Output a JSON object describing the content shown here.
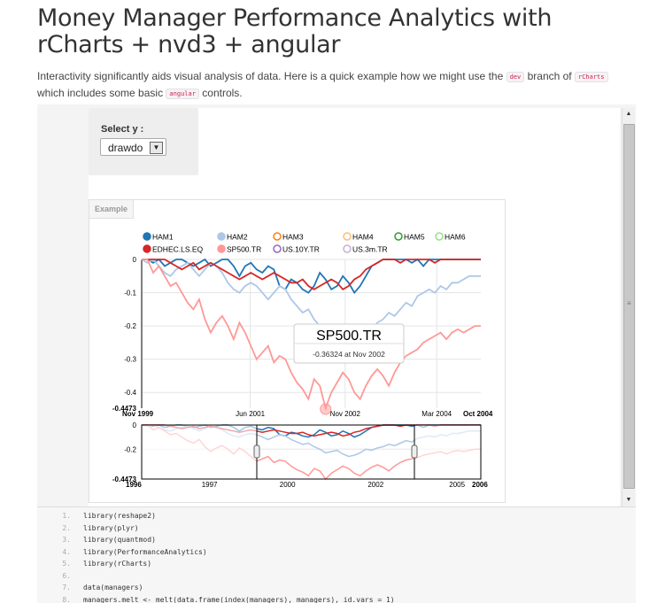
{
  "page": {
    "title": "Money Manager Performance Analytics with rCharts + nvd3 + angular",
    "intro_before": "Interactivity significantly aids visual analysis of data. Here is a quick example how we might use the",
    "code_dev": "dev",
    "intro_mid": "branch of",
    "code_rcharts": "rCharts",
    "intro_line2": "which includes some basic",
    "code_angular": "angular",
    "intro_end": "controls."
  },
  "control": {
    "label": "Select y :",
    "selected": "drawdo"
  },
  "chart_tab": "Example",
  "chart_data": {
    "type": "line",
    "title": "",
    "legend": [
      "HAM1",
      "HAM2",
      "HAM3",
      "HAM4",
      "HAM5",
      "HAM6",
      "EDHEC.LS.EQ",
      "SP500.TR",
      "US.10Y.TR",
      "US.3m.TR"
    ],
    "legend_colors": {
      "HAM1": "#1f77b4",
      "HAM2": "#aec7e8",
      "HAM3": "#ff7f0e",
      "HAM4": "#ffbb78",
      "HAM5": "#2ca02c",
      "HAM6": "#98df8a",
      "EDHEC.LS.EQ": "#d62728",
      "SP500.TR": "#ff9896",
      "US.10Y.TR": "#9467bd",
      "US.3m.TR": "#c5b0d5"
    },
    "legend_enabled": {
      "HAM1": true,
      "HAM2": true,
      "HAM3": false,
      "HAM4": false,
      "HAM5": false,
      "HAM6": false,
      "EDHEC.LS.EQ": true,
      "SP500.TR": true,
      "US.10Y.TR": false,
      "US.3m.TR": false
    },
    "main_y_ticks": [
      "0",
      "-0.1",
      "-0.2",
      "-0.3",
      "-0.4",
      "-0.4473"
    ],
    "main_x_ticks": [
      "Nov 1999",
      "Jun 2001",
      "Nov 2002",
      "Mar 2004",
      "Oct 2004"
    ],
    "ylim": [
      -0.4473,
      0
    ],
    "xlim": [
      "1999-11",
      "2004-10"
    ],
    "focus_y_ticks": [
      "0",
      "-0.2",
      "-0.4473"
    ],
    "focus_x_ticks": [
      "1996",
      "1997",
      "2000",
      "2002",
      "2005",
      "2006"
    ],
    "series": [
      {
        "name": "HAM1",
        "color": "#1f77b4",
        "values": [
          0,
          0,
          -0.01,
          0,
          -0.02,
          -0.01,
          0,
          0,
          -0.01,
          -0.02,
          -0.01,
          0,
          -0.02,
          -0.01,
          0,
          0,
          -0.02,
          -0.05,
          -0.02,
          -0.01,
          -0.03,
          -0.04,
          -0.02,
          -0.03,
          -0.08,
          -0.09,
          -0.06,
          -0.07,
          -0.09,
          -0.1,
          -0.08,
          -0.04,
          -0.06,
          -0.09,
          -0.08,
          -0.05,
          -0.07,
          -0.1,
          -0.08,
          -0.05,
          -0.02,
          -0.01,
          0,
          0,
          0,
          0,
          0,
          -0.01,
          0,
          -0.02,
          0,
          0,
          0,
          0,
          0,
          0,
          0,
          0,
          0,
          0
        ]
      },
      {
        "name": "HAM2",
        "color": "#aec7e8",
        "values": [
          0,
          -0.01,
          0,
          -0.02,
          -0.04,
          -0.05,
          -0.03,
          -0.02,
          -0.01,
          -0.03,
          -0.05,
          -0.03,
          -0.01,
          -0.02,
          -0.04,
          -0.07,
          -0.09,
          -0.1,
          -0.08,
          -0.07,
          -0.08,
          -0.1,
          -0.12,
          -0.1,
          -0.08,
          -0.09,
          -0.12,
          -0.14,
          -0.16,
          -0.15,
          -0.18,
          -0.2,
          -0.23,
          -0.22,
          -0.21,
          -0.24,
          -0.26,
          -0.25,
          -0.23,
          -0.2,
          -0.21,
          -0.19,
          -0.18,
          -0.16,
          -0.17,
          -0.15,
          -0.13,
          -0.14,
          -0.11,
          -0.1,
          -0.09,
          -0.1,
          -0.08,
          -0.09,
          -0.07,
          -0.07,
          -0.06,
          -0.05,
          -0.05,
          -0.05
        ]
      },
      {
        "name": "EDHEC.LS.EQ",
        "color": "#d62728",
        "values": [
          0,
          0,
          0,
          0,
          0,
          -0.01,
          -0.02,
          -0.03,
          -0.02,
          -0.01,
          -0.03,
          -0.02,
          -0.01,
          -0.02,
          -0.03,
          -0.04,
          -0.05,
          -0.06,
          -0.05,
          -0.04,
          -0.05,
          -0.06,
          -0.05,
          -0.04,
          -0.05,
          -0.06,
          -0.07,
          -0.07,
          -0.06,
          -0.08,
          -0.09,
          -0.08,
          -0.07,
          -0.06,
          -0.07,
          -0.09,
          -0.08,
          -0.06,
          -0.05,
          -0.03,
          -0.02,
          -0.01,
          0,
          0,
          0,
          -0.01,
          0,
          0,
          0,
          0,
          0,
          -0.01,
          0,
          0,
          0,
          0,
          0,
          0,
          0,
          0
        ]
      },
      {
        "name": "SP500.TR",
        "color": "#ff9896",
        "values": [
          0,
          0,
          -0.04,
          -0.02,
          -0.05,
          -0.08,
          -0.07,
          -0.1,
          -0.13,
          -0.15,
          -0.12,
          -0.18,
          -0.22,
          -0.19,
          -0.17,
          -0.2,
          -0.24,
          -0.19,
          -0.22,
          -0.26,
          -0.3,
          -0.28,
          -0.26,
          -0.31,
          -0.29,
          -0.3,
          -0.34,
          -0.37,
          -0.39,
          -0.42,
          -0.36,
          -0.38,
          -0.45,
          -0.4,
          -0.37,
          -0.34,
          -0.36,
          -0.4,
          -0.42,
          -0.38,
          -0.35,
          -0.33,
          -0.35,
          -0.38,
          -0.34,
          -0.31,
          -0.29,
          -0.28,
          -0.27,
          -0.25,
          -0.24,
          -0.23,
          -0.22,
          -0.24,
          -0.22,
          -0.21,
          -0.22,
          -0.21,
          -0.2,
          -0.2
        ]
      }
    ],
    "tooltip": {
      "series": "SP500.TR",
      "text": "-0.36324 at Nov 2002"
    }
  },
  "code": {
    "lines": [
      {
        "n": "1.",
        "t": "library(reshape2)"
      },
      {
        "n": "2.",
        "t": "library(plyr)"
      },
      {
        "n": "3.",
        "t": "library(quantmod)"
      },
      {
        "n": "4.",
        "t": "library(PerformanceAnalytics)"
      },
      {
        "n": "5.",
        "t": "library(rCharts)"
      },
      {
        "n": "6.",
        "t": ""
      },
      {
        "n": "7.",
        "t": "data(managers)"
      },
      {
        "n": "8.",
        "t": "managers.melt <- melt(data.frame(index(managers), managers), id.vars = 1)"
      }
    ]
  }
}
